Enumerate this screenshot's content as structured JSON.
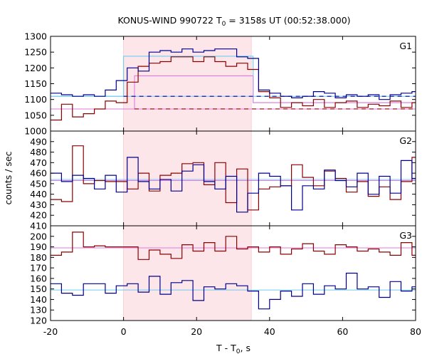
{
  "figure": {
    "title_main": "KONUS-WIND 990722 T",
    "title_sub": "0",
    "title_rest": " = 3158s UT (00:52:38.000)",
    "ylabel": "counts / sec",
    "xlabel_main": "T - T",
    "xlabel_sub": "0",
    "xlabel_rest": ", s"
  },
  "colors": {
    "red": "#8b0000",
    "blue": "#00008b",
    "cyan": "#6ecdf0",
    "pink": "#e27ae2",
    "shade": "#fde6ea",
    "shade_edge": "#f5b8c4"
  },
  "chart_data": {
    "type": "line",
    "xlim": [
      -20,
      80
    ],
    "x_ticks": [
      -20,
      0,
      20,
      40,
      60,
      80
    ],
    "highlight_interval": [
      0,
      35
    ],
    "bin_edges": [
      -20,
      -17,
      -14,
      -11,
      -8,
      -5,
      -2,
      1,
      4,
      7,
      10,
      13,
      16,
      19,
      22,
      25,
      28,
      31,
      34,
      37,
      40,
      43,
      46,
      49,
      52,
      55,
      58,
      61,
      64,
      67,
      70,
      73,
      76,
      79,
      80
    ],
    "panels": [
      {
        "label": "G1",
        "ylim": [
          1000,
          1300
        ],
        "y_ticks": [
          1000,
          1050,
          1100,
          1150,
          1200,
          1250,
          1300
        ],
        "series": [
          {
            "color_key": "red",
            "values": [
              1035,
              1085,
              1045,
              1055,
              1070,
              1095,
              1090,
              1155,
              1205,
              1215,
              1220,
              1235,
              1235,
              1220,
              1235,
              1220,
              1205,
              1215,
              1195,
              1125,
              1105,
              1075,
              1090,
              1080,
              1100,
              1075,
              1090,
              1095,
              1075,
              1085,
              1080,
              1095,
              1075,
              1090
            ]
          },
          {
            "color_key": "blue",
            "values": [
              1120,
              1115,
              1110,
              1115,
              1110,
              1130,
              1160,
              1200,
              1190,
              1250,
              1255,
              1250,
              1260,
              1250,
              1255,
              1260,
              1260,
              1235,
              1230,
              1130,
              1120,
              1110,
              1105,
              1110,
              1125,
              1120,
              1105,
              1115,
              1110,
              1115,
              1100,
              1115,
              1120,
              1125
            ]
          }
        ],
        "bg_levels": [
          {
            "color_key": "cyan",
            "value": 1110,
            "style": "solid"
          },
          {
            "color_key": "pink",
            "value": 1070,
            "style": "solid"
          }
        ],
        "step_fits": [
          {
            "color_key": "cyan",
            "points": [
              [
                -20,
                1110
              ],
              [
                0,
                1110
              ],
              [
                0,
                1237
              ],
              [
                35.5,
                1237
              ],
              [
                35.5,
                1090
              ],
              [
                80,
                1090
              ]
            ]
          },
          {
            "color_key": "pink",
            "points": [
              [
                -20,
                1070
              ],
              [
                3,
                1070
              ],
              [
                3,
                1175
              ],
              [
                35.5,
                1175
              ],
              [
                35.5,
                1090
              ],
              [
                80,
                1090
              ]
            ]
          }
        ],
        "dashed_levels": [
          {
            "color_key": "blue",
            "value": 1110,
            "x_range": [
              0,
              80
            ]
          },
          {
            "color_key": "red",
            "value": 1070,
            "x_range": [
              3,
              80
            ]
          }
        ]
      },
      {
        "label": "G2",
        "ylim": [
          410,
          500
        ],
        "y_ticks": [
          410,
          420,
          430,
          440,
          450,
          460,
          470,
          480,
          490
        ],
        "series": [
          {
            "color_key": "red",
            "values": [
              435,
              433,
              486,
              450,
              453,
              452,
              452,
              445,
              460,
              443,
              458,
              460,
              469,
              470,
              449,
              470,
              432,
              464,
              425,
              445,
              447,
              448,
              468,
              456,
              448,
              462,
              455,
              442,
              452,
              438,
              447,
              435,
              452,
              475
            ]
          },
          {
            "color_key": "blue",
            "values": [
              460,
              452,
              458,
              455,
              445,
              458,
              442,
              475,
              452,
              445,
              454,
              443,
              462,
              468,
              452,
              445,
              457,
              423,
              441,
              460,
              457,
              448,
              425,
              448,
              445,
              463,
              453,
              447,
              460,
              440,
              457,
              441,
              472,
              455
            ]
          }
        ],
        "bg_levels": [
          {
            "color_key": "cyan",
            "value": 454,
            "style": "solid"
          },
          {
            "color_key": "pink",
            "value": 453,
            "style": "solid"
          }
        ]
      },
      {
        "label": "G3",
        "ylim": [
          120,
          210
        ],
        "y_ticks": [
          120,
          130,
          140,
          150,
          160,
          170,
          180,
          190,
          200
        ],
        "series": [
          {
            "color_key": "red",
            "values": [
              182,
              185,
              204,
              190,
              191,
              190,
              190,
              190,
              178,
              187,
              183,
              179,
              192,
              186,
              194,
              186,
              200,
              188,
              190,
              185,
              190,
              183,
              188,
              193,
              186,
              183,
              192,
              190,
              186,
              188,
              185,
              182,
              194,
              182
            ]
          },
          {
            "color_key": "blue",
            "values": [
              155,
              146,
              144,
              155,
              155,
              146,
              153,
              155,
              147,
              162,
              145,
              156,
              158,
              139,
              152,
              150,
              155,
              153,
              148,
              131,
              140,
              148,
              143,
              155,
              145,
              153,
              150,
              165,
              150,
              152,
              142,
              157,
              148,
              152
            ]
          }
        ],
        "bg_levels": [
          {
            "color_key": "pink",
            "value": 189,
            "style": "solid"
          },
          {
            "color_key": "cyan",
            "value": 149,
            "style": "solid"
          }
        ]
      }
    ]
  }
}
